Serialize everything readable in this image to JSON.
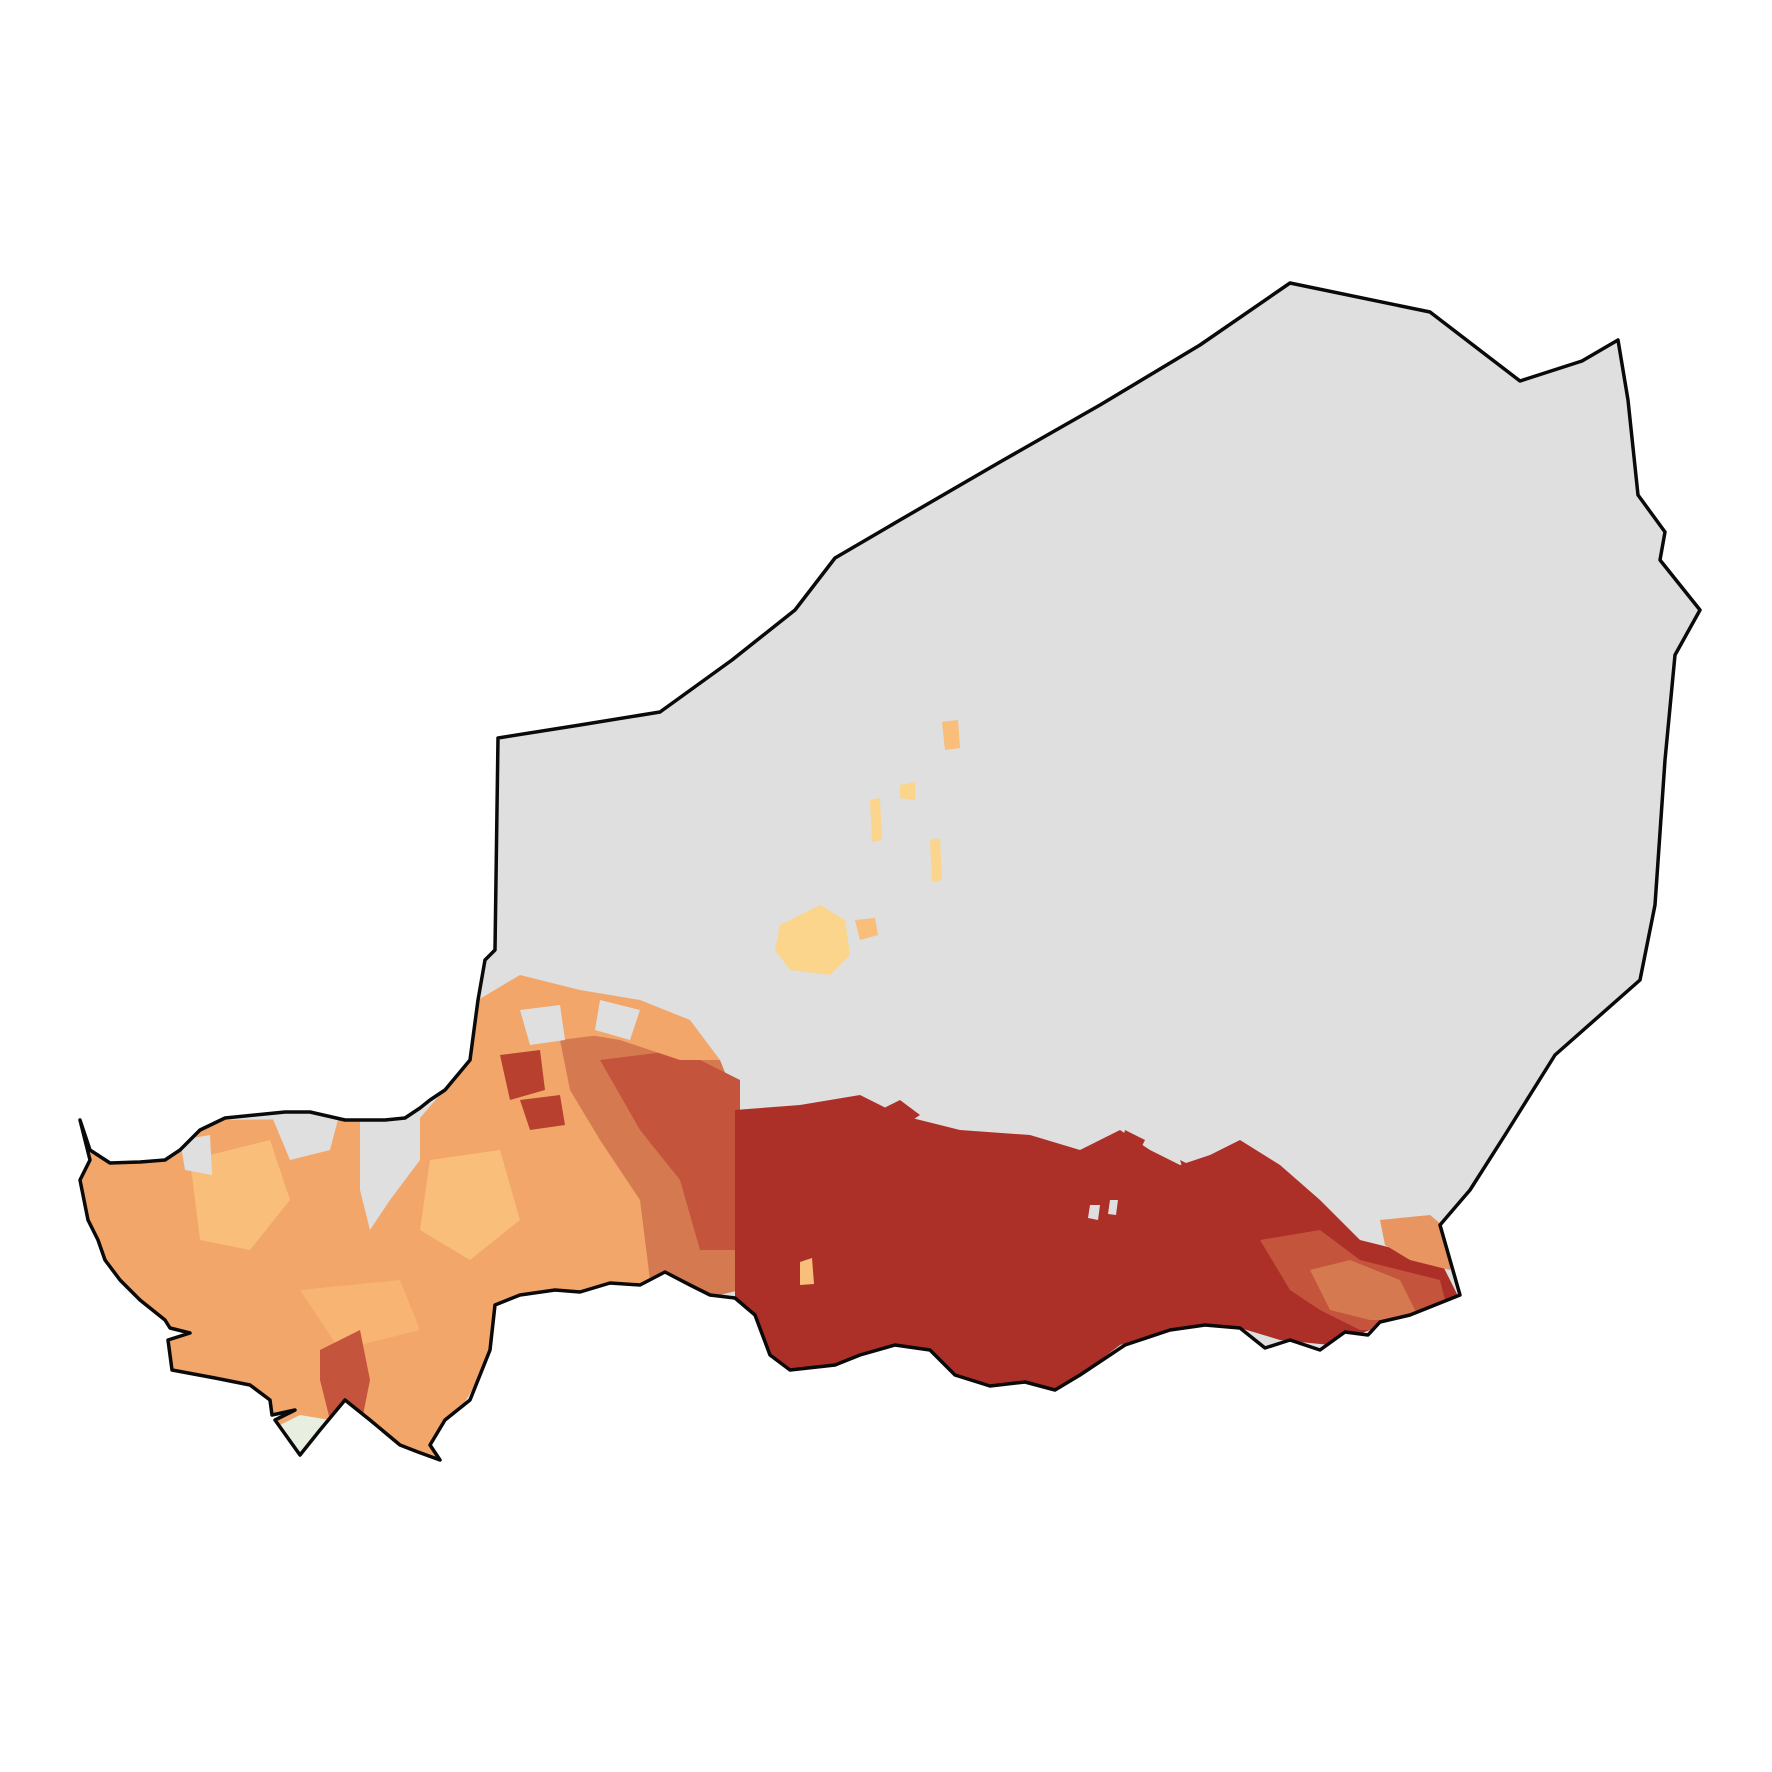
{
  "map": {
    "subject": "Niger",
    "colors": {
      "background": "#ffffff",
      "no_data": "#dfdfdf",
      "border": "#0a0a0a",
      "class_very_high": "#ad3028",
      "class_high": "#c4543c",
      "class_medium_high": "#d57a50",
      "class_medium": "#f2a66a",
      "class_low": "#f8be7a",
      "class_very_low": "#fbd58c",
      "class_minimal": "#e8efe0"
    },
    "legend_visible": false,
    "title": ""
  }
}
